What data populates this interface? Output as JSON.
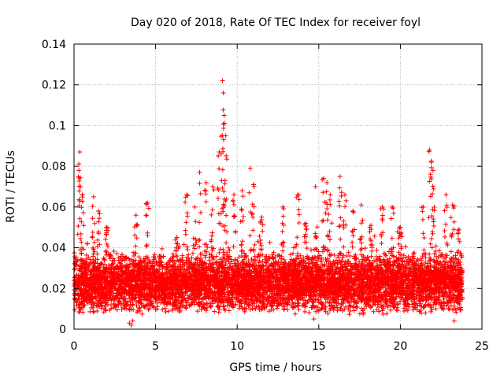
{
  "chart_data": {
    "type": "scatter",
    "title": "Day 020 of 2018, Rate Of TEC Index for receiver foyl",
    "xlabel": "GPS time / hours",
    "ylabel": "ROTI / TECUs",
    "xlim": [
      0,
      25
    ],
    "ylim": [
      0,
      0.14
    ],
    "xticks": [
      0,
      5,
      10,
      15,
      20,
      25
    ],
    "yticks": [
      0,
      0.02,
      0.04,
      0.06,
      0.08,
      0.1,
      0.12,
      0.14
    ],
    "xtick_labels": [
      "0",
      "5",
      "10",
      "15",
      "20",
      "25"
    ],
    "ytick_labels": [
      "0",
      "0.02",
      "0.04",
      "0.06",
      "0.08",
      "0.1",
      "0.12",
      "0.14"
    ],
    "grid": true,
    "marker": "plus",
    "color": "#ff0000",
    "data_range_hours": [
      0,
      23.8
    ],
    "background_band": [
      0.007,
      0.038
    ],
    "peaks": [
      {
        "x": 0.35,
        "y": 0.087
      },
      {
        "x": 0.3,
        "y": 0.078
      },
      {
        "x": 0.5,
        "y": 0.066
      },
      {
        "x": 1.2,
        "y": 0.065
      },
      {
        "x": 1.5,
        "y": 0.058
      },
      {
        "x": 2.0,
        "y": 0.05
      },
      {
        "x": 3.8,
        "y": 0.056
      },
      {
        "x": 4.5,
        "y": 0.062
      },
      {
        "x": 6.3,
        "y": 0.045
      },
      {
        "x": 6.9,
        "y": 0.066
      },
      {
        "x": 7.4,
        "y": 0.06
      },
      {
        "x": 7.7,
        "y": 0.077
      },
      {
        "x": 8.1,
        "y": 0.072
      },
      {
        "x": 8.5,
        "y": 0.07
      },
      {
        "x": 8.9,
        "y": 0.087
      },
      {
        "x": 9.1,
        "y": 0.122
      },
      {
        "x": 9.15,
        "y": 0.116
      },
      {
        "x": 9.2,
        "y": 0.105
      },
      {
        "x": 9.3,
        "y": 0.095
      },
      {
        "x": 9.8,
        "y": 0.066
      },
      {
        "x": 10.3,
        "y": 0.068
      },
      {
        "x": 10.8,
        "y": 0.079
      },
      {
        "x": 11.0,
        "y": 0.071
      },
      {
        "x": 11.5,
        "y": 0.055
      },
      {
        "x": 12.8,
        "y": 0.06
      },
      {
        "x": 13.7,
        "y": 0.066
      },
      {
        "x": 14.2,
        "y": 0.052
      },
      {
        "x": 14.8,
        "y": 0.07
      },
      {
        "x": 15.3,
        "y": 0.074
      },
      {
        "x": 15.5,
        "y": 0.072
      },
      {
        "x": 15.7,
        "y": 0.066
      },
      {
        "x": 16.3,
        "y": 0.075
      },
      {
        "x": 16.6,
        "y": 0.066
      },
      {
        "x": 17.1,
        "y": 0.058
      },
      {
        "x": 17.6,
        "y": 0.061
      },
      {
        "x": 18.2,
        "y": 0.051
      },
      {
        "x": 18.9,
        "y": 0.06
      },
      {
        "x": 19.5,
        "y": 0.06
      },
      {
        "x": 20.0,
        "y": 0.05
      },
      {
        "x": 21.4,
        "y": 0.06
      },
      {
        "x": 21.8,
        "y": 0.088
      },
      {
        "x": 21.9,
        "y": 0.082
      },
      {
        "x": 22.0,
        "y": 0.078
      },
      {
        "x": 22.8,
        "y": 0.066
      },
      {
        "x": 23.2,
        "y": 0.061
      },
      {
        "x": 23.6,
        "y": 0.049
      }
    ],
    "dips": [
      {
        "x": 3.4,
        "y": 0.003
      },
      {
        "x": 3.5,
        "y": 0.002
      },
      {
        "x": 3.6,
        "y": 0.004
      },
      {
        "x": 14.7,
        "y": 0.005
      },
      {
        "x": 23.3,
        "y": 0.004
      }
    ]
  }
}
